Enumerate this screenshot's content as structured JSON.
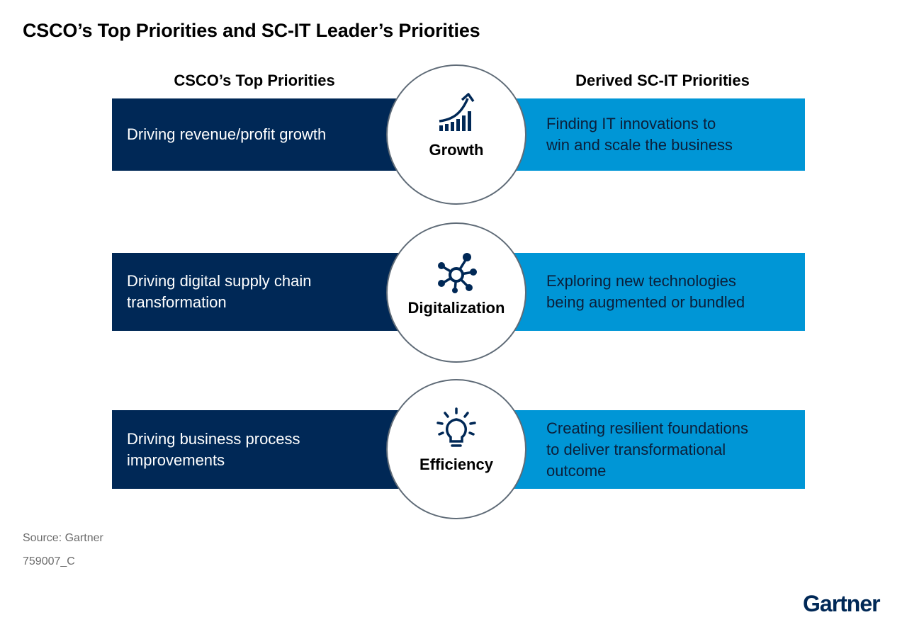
{
  "title": "CSCO’s Top Priorities and SC-IT Leader’s Priorities",
  "columns": {
    "left": "CSCO’s Top Priorities",
    "right": "Derived SC-IT Priorities"
  },
  "rows": [
    {
      "csco_priority": "Driving revenue/profit growth",
      "theme": "Growth",
      "icon": "growth-chart-icon",
      "sc_it_priority": "Finding IT innovations to\nwin and scale the business"
    },
    {
      "csco_priority": "Driving digital supply chain\ntransformation",
      "theme": "Digitalization",
      "icon": "network-nodes-icon",
      "sc_it_priority": "Exploring new technologies\nbeing augmented or bundled"
    },
    {
      "csco_priority": "Driving business process\nimprovements",
      "theme": "Efficiency",
      "icon": "lightbulb-icon",
      "sc_it_priority": "Creating resilient foundations\nto deliver transformational\noutcome"
    }
  ],
  "footer": {
    "source": "Source: Gartner",
    "code": "759007_C",
    "logo": "Gartner"
  },
  "colors": {
    "dark_navy": "#002856",
    "bright_blue": "#0096d6",
    "circle_border": "#5f6b77"
  }
}
